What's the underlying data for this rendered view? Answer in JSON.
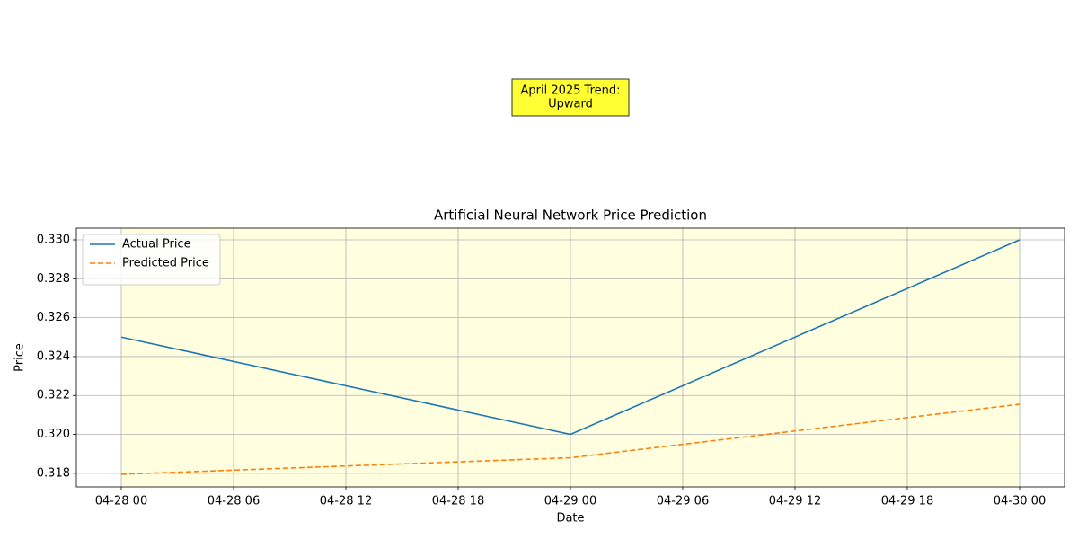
{
  "chart_data": {
    "type": "line",
    "title": "Artificial Neural Network Price Prediction",
    "xlabel": "Date",
    "ylabel": "Price",
    "annotation": [
      "April 2025 Trend:",
      "Upward"
    ],
    "annotation_color": "#ffff33",
    "x": [
      0,
      24,
      48
    ],
    "series": [
      {
        "name": "Actual Price",
        "color": "#1f77b4",
        "dash": false,
        "values": [
          0.325,
          0.32,
          0.33
        ]
      },
      {
        "name": "Predicted Price",
        "color": "#ff7f0e",
        "dash": true,
        "values": [
          0.31795,
          0.3188,
          0.32155
        ]
      }
    ],
    "highlight_span": [
      0,
      48
    ],
    "highlight_color": "#ffffe0",
    "xlim": [
      -2.4,
      50.4
    ],
    "xticks": [
      {
        "value": 0,
        "label": "04-28 00"
      },
      {
        "value": 6,
        "label": "04-28 06"
      },
      {
        "value": 12,
        "label": "04-28 12"
      },
      {
        "value": 18,
        "label": "04-28 18"
      },
      {
        "value": 24,
        "label": "04-29 00"
      },
      {
        "value": 30,
        "label": "04-29 06"
      },
      {
        "value": 36,
        "label": "04-29 12"
      },
      {
        "value": 42,
        "label": "04-29 18"
      },
      {
        "value": 48,
        "label": "04-30 00"
      }
    ],
    "ylim": [
      0.3173,
      0.3306
    ],
    "yticks": [
      0.318,
      {
        "value": 0.32,
        "label": "0.320"
      },
      0.322,
      0.324,
      0.326,
      0.328,
      {
        "value": 0.33,
        "label": "0.330"
      }
    ],
    "grid": true,
    "legend": "upper-left"
  }
}
